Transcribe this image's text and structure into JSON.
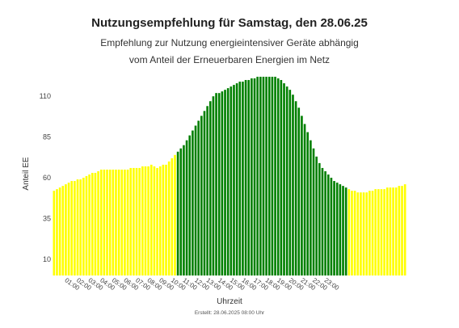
{
  "chart_data": {
    "type": "bar",
    "title": "Nutzungsempfehlung für Samstag, den 28.06.25",
    "subtitle_lines": [
      "Empfehlung zur Nutzung energieintensiver Geräte abhängig",
      "vom Anteil der Erneuerbaren Energien im Netz"
    ],
    "xlabel": "Uhrzeit",
    "ylabel": "Anteil EE",
    "footer": "Erstellt: 28.06.2025 08:00 Uhr",
    "ylim": [
      0,
      123
    ],
    "y_ticks": [
      10,
      35,
      60,
      85,
      110
    ],
    "x_ticks": [
      "01:00",
      "02:00",
      "03:00",
      "04:00",
      "05:00",
      "06:00",
      "07:00",
      "08:00",
      "09:00",
      "10:00",
      "11:00",
      "12:00",
      "13:00",
      "14:00",
      "15:00",
      "16:00",
      "17:00",
      "18:00",
      "19:00",
      "20:00",
      "21:00",
      "22:00",
      "23:00"
    ],
    "x_interval_minutes": 15,
    "x_start": "00:00",
    "colors": {
      "recommended": "#008000",
      "not_recommended": "#ffff00"
    },
    "values": [
      52,
      53,
      54,
      55,
      56,
      57,
      58,
      58,
      59,
      59,
      60,
      61,
      62,
      63,
      63,
      64,
      65,
      65,
      65,
      65,
      65,
      65,
      65,
      65,
      65,
      65,
      66,
      66,
      66,
      66,
      67,
      67,
      67,
      68,
      67,
      66,
      67,
      68,
      68,
      70,
      72,
      74,
      76,
      78,
      80,
      83,
      86,
      89,
      92,
      95,
      98,
      101,
      104,
      107,
      110,
      112,
      112,
      113,
      114,
      115,
      116,
      117,
      118,
      119,
      119,
      120,
      120,
      121,
      121,
      122,
      122,
      122,
      122,
      122,
      122,
      122,
      121,
      120,
      118,
      116,
      114,
      111,
      107,
      103,
      98,
      93,
      88,
      83,
      78,
      73,
      69,
      66,
      64,
      62,
      60,
      58,
      57,
      56,
      55,
      54,
      53,
      52,
      52,
      51,
      51,
      51,
      51,
      52,
      52,
      53,
      53,
      53,
      53,
      54,
      54,
      54,
      54,
      55,
      55,
      56
    ],
    "status": [
      "n",
      "n",
      "n",
      "n",
      "n",
      "n",
      "n",
      "n",
      "n",
      "n",
      "n",
      "n",
      "n",
      "n",
      "n",
      "n",
      "n",
      "n",
      "n",
      "n",
      "n",
      "n",
      "n",
      "n",
      "n",
      "n",
      "n",
      "n",
      "n",
      "n",
      "n",
      "n",
      "n",
      "n",
      "n",
      "n",
      "n",
      "n",
      "n",
      "n",
      "n",
      "n",
      "r",
      "r",
      "r",
      "r",
      "r",
      "r",
      "r",
      "r",
      "r",
      "r",
      "r",
      "r",
      "r",
      "r",
      "r",
      "r",
      "r",
      "r",
      "r",
      "r",
      "r",
      "r",
      "r",
      "r",
      "r",
      "r",
      "r",
      "r",
      "r",
      "r",
      "r",
      "r",
      "r",
      "r",
      "r",
      "r",
      "r",
      "r",
      "r",
      "r",
      "r",
      "r",
      "r",
      "r",
      "r",
      "r",
      "r",
      "r",
      "r",
      "r",
      "r",
      "r",
      "r",
      "r",
      "r",
      "r",
      "r",
      "r",
      "n",
      "n",
      "n",
      "n",
      "n",
      "n",
      "n",
      "n",
      "n",
      "n",
      "n",
      "n",
      "n",
      "n",
      "n",
      "n",
      "n",
      "n",
      "n",
      "n",
      "n",
      "n",
      "n",
      "n",
      "n",
      "n",
      "n",
      "n"
    ],
    "grid": false,
    "legend": "none"
  }
}
